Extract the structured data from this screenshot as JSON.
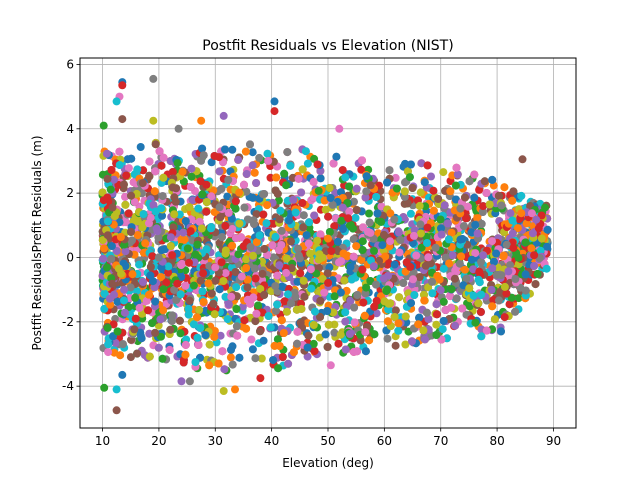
{
  "chart_data": {
    "type": "scatter",
    "title": "Postfit Residuals vs Elevation (NIST)",
    "xlabel": "Elevation (deg)",
    "ylabel": "Postfit ResidualsPrefit Residuals (m)",
    "xlim": [
      6,
      94
    ],
    "ylim": [
      -5.3,
      6.2
    ],
    "x_ticks": [
      10,
      20,
      30,
      40,
      50,
      60,
      70,
      80,
      90
    ],
    "y_ticks": [
      -4,
      -2,
      0,
      2,
      4,
      6
    ],
    "grid": true,
    "legend": "none",
    "marker": "circle",
    "series_colors": [
      "#1f77b4",
      "#ff7f0e",
      "#2ca02c",
      "#d62728",
      "#9467bd",
      "#8c564b",
      "#e377c2",
      "#7f7f7f",
      "#bcbd22",
      "#17becf"
    ],
    "dense_cloud": {
      "x_range": [
        10,
        89
      ],
      "typical_y_range": [
        -3.0,
        3.0
      ],
      "upper_envelope_approx": [
        [
          10,
          3.3
        ],
        [
          20,
          3.6
        ],
        [
          30,
          3.4
        ],
        [
          40,
          3.6
        ],
        [
          50,
          3.2
        ],
        [
          60,
          2.9
        ],
        [
          70,
          3.0
        ],
        [
          80,
          2.4
        ],
        [
          89,
          1.6
        ]
      ],
      "lower_envelope_approx": [
        [
          10,
          -3.0
        ],
        [
          20,
          -3.3
        ],
        [
          30,
          -3.6
        ],
        [
          40,
          -3.5
        ],
        [
          50,
          -3.0
        ],
        [
          60,
          -3.0
        ],
        [
          70,
          -2.6
        ],
        [
          80,
          -2.5
        ],
        [
          89,
          -0.4
        ]
      ]
    },
    "outlier_points": [
      {
        "x": 19,
        "y": 5.55
      },
      {
        "x": 13.5,
        "y": 5.45
      },
      {
        "x": 13.5,
        "y": 5.35
      },
      {
        "x": 13,
        "y": 5.0
      },
      {
        "x": 12.5,
        "y": 4.85
      },
      {
        "x": 10.2,
        "y": 4.1
      },
      {
        "x": 13.5,
        "y": 4.3
      },
      {
        "x": 19,
        "y": 4.25
      },
      {
        "x": 27.5,
        "y": 4.25
      },
      {
        "x": 31.5,
        "y": 4.4
      },
      {
        "x": 23.5,
        "y": 4.0
      },
      {
        "x": 40.5,
        "y": 4.85
      },
      {
        "x": 40.5,
        "y": 4.55
      },
      {
        "x": 52,
        "y": 4.0
      },
      {
        "x": 12.5,
        "y": -4.1
      },
      {
        "x": 10.3,
        "y": -4.05
      },
      {
        "x": 12.5,
        "y": -4.75
      },
      {
        "x": 31.5,
        "y": -4.15
      },
      {
        "x": 33.5,
        "y": -4.1
      },
      {
        "x": 24,
        "y": -3.85
      },
      {
        "x": 25.5,
        "y": -3.85
      },
      {
        "x": 13.5,
        "y": -3.65
      },
      {
        "x": 38,
        "y": -3.75
      },
      {
        "x": 50.5,
        "y": -3.35
      },
      {
        "x": 88.8,
        "y": -0.35
      },
      {
        "x": 88.5,
        "y": 1.55
      },
      {
        "x": 84.5,
        "y": 3.05
      }
    ]
  }
}
